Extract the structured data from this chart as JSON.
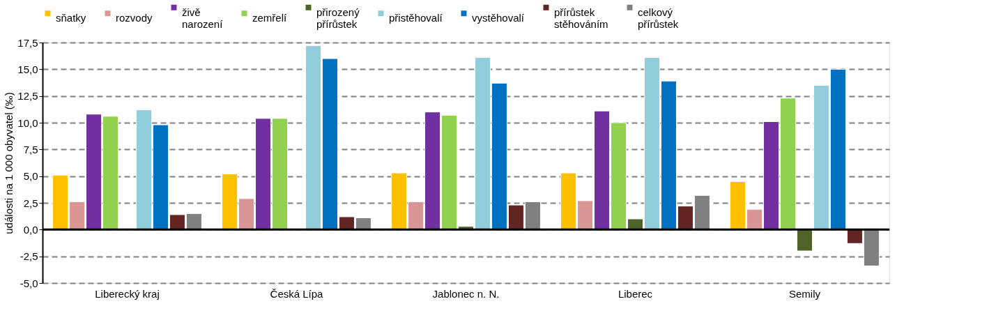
{
  "chart_data": {
    "type": "bar",
    "categories": [
      "Liberecký kraj",
      "Česká Lípa",
      "Jablonec n. N.",
      "Liberec",
      "Semily"
    ],
    "ylabel": "události na 1 000 obyvatel (‰)",
    "ylim": [
      -5,
      17.5
    ],
    "yticks": [
      {
        "value": -5,
        "label": "-5,0"
      },
      {
        "value": -2.5,
        "label": "-2,5"
      },
      {
        "value": 0,
        "label": "0,0"
      },
      {
        "value": 2.5,
        "label": "2,5"
      },
      {
        "value": 5,
        "label": "5,0"
      },
      {
        "value": 7.5,
        "label": "7,5"
      },
      {
        "value": 10,
        "label": "10,0"
      },
      {
        "value": 12.5,
        "label": "12,5"
      },
      {
        "value": 15,
        "label": "15,0"
      },
      {
        "value": 17.5,
        "label": "17,5"
      }
    ],
    "grid": "y",
    "line_style": "dashed",
    "legend": "top",
    "series": [
      {
        "name": "sňatky",
        "color": "#ffc000",
        "values": [
          5.1,
          5.2,
          5.3,
          5.3,
          4.5
        ]
      },
      {
        "name": "rozvody",
        "color": "#d99694",
        "values": [
          2.6,
          2.9,
          2.6,
          2.7,
          1.9
        ]
      },
      {
        "name": "živě narození",
        "color": "#7030a0",
        "values": [
          10.8,
          10.4,
          11.0,
          11.1,
          10.1
        ]
      },
      {
        "name": "zemřelí",
        "color": "#92d050",
        "values": [
          10.6,
          10.4,
          10.7,
          10.0,
          12.3
        ]
      },
      {
        "name": "přirozený přírůstek",
        "color": "#4f6228",
        "values": [
          null,
          null,
          0.3,
          1.0,
          -2.0
        ]
      },
      {
        "name": "přistěhovalí",
        "color": "#92cddc",
        "values": [
          11.2,
          17.2,
          16.1,
          16.1,
          13.5
        ]
      },
      {
        "name": "vystěhovalí",
        "color": "#0070c0",
        "values": [
          9.8,
          16.0,
          13.7,
          13.9,
          15.0
        ]
      },
      {
        "name": "přírůstek stěhováním",
        "color": "#632523",
        "values": [
          1.4,
          1.2,
          2.3,
          2.2,
          -1.3
        ]
      },
      {
        "name": "celkový přírůstek",
        "color": "#808080",
        "values": [
          1.5,
          1.1,
          2.6,
          3.2,
          -3.4
        ]
      }
    ]
  }
}
